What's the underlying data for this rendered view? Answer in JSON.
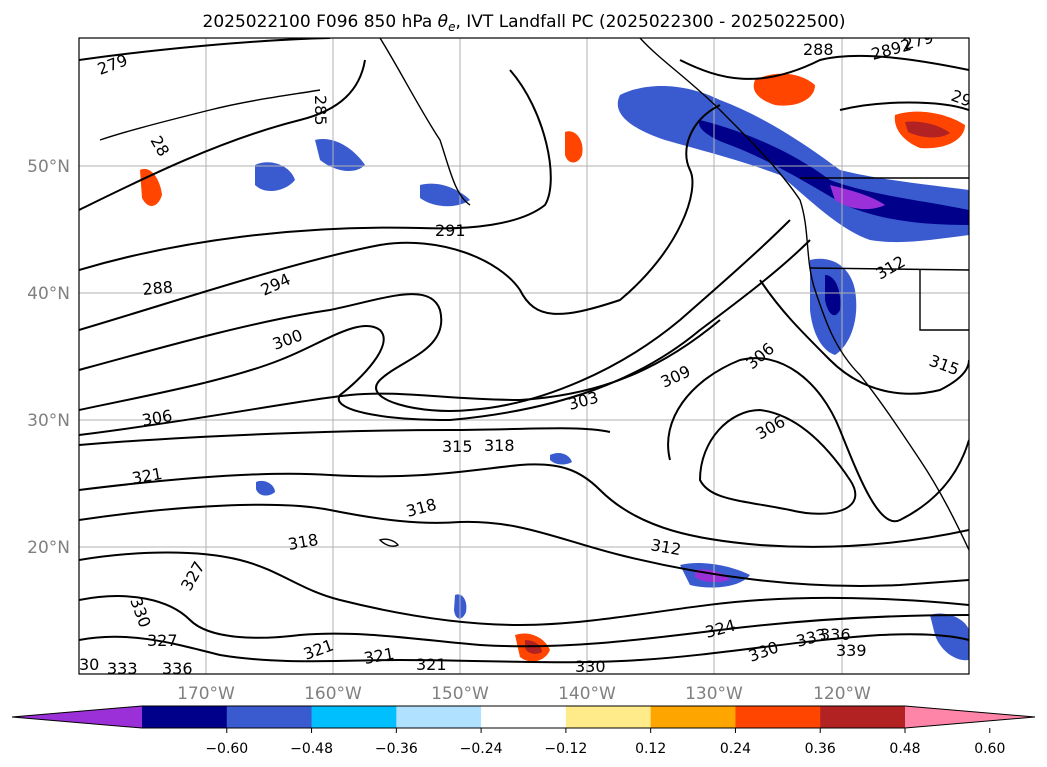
{
  "title": {
    "prefix": "2025022100 F096 850 hPa ",
    "symbol": "θ",
    "subscript": "e",
    "suffix": ", IVT Landfall PC (2025022300 - 2025022500)"
  },
  "map": {
    "lat_labels": [
      "50°N",
      "40°N",
      "30°N",
      "20°N"
    ],
    "lon_labels": [
      "170°W",
      "160°W",
      "150°W",
      "140°W",
      "130°W",
      "120°W"
    ],
    "contour_labels": [
      "279",
      "288",
      "2892",
      "279",
      "29",
      "285",
      "28",
      "291",
      "288",
      "294",
      "300",
      "306",
      "303",
      "309",
      "306",
      "315",
      "318",
      "306",
      "321",
      "318",
      "318",
      "312",
      "327",
      "330",
      "327",
      "324",
      "330",
      "333",
      "336",
      "339",
      "321",
      "321",
      "321",
      "30",
      "333",
      "336",
      "330",
      "312",
      "315"
    ]
  },
  "colorbar": {
    "ticks": [
      "−0.60",
      "−0.48",
      "−0.36",
      "−0.24",
      "−0.12",
      "0.12",
      "0.24",
      "0.36",
      "0.48",
      "0.60"
    ],
    "colors": [
      "#9b30d9",
      "#00008b",
      "#3a5bd0",
      "#00bfff",
      "#b0e2ff",
      "#ffffff",
      "#ffeb8a",
      "#ffa500",
      "#ff4500",
      "#b22222",
      "#ff85a8"
    ]
  }
}
